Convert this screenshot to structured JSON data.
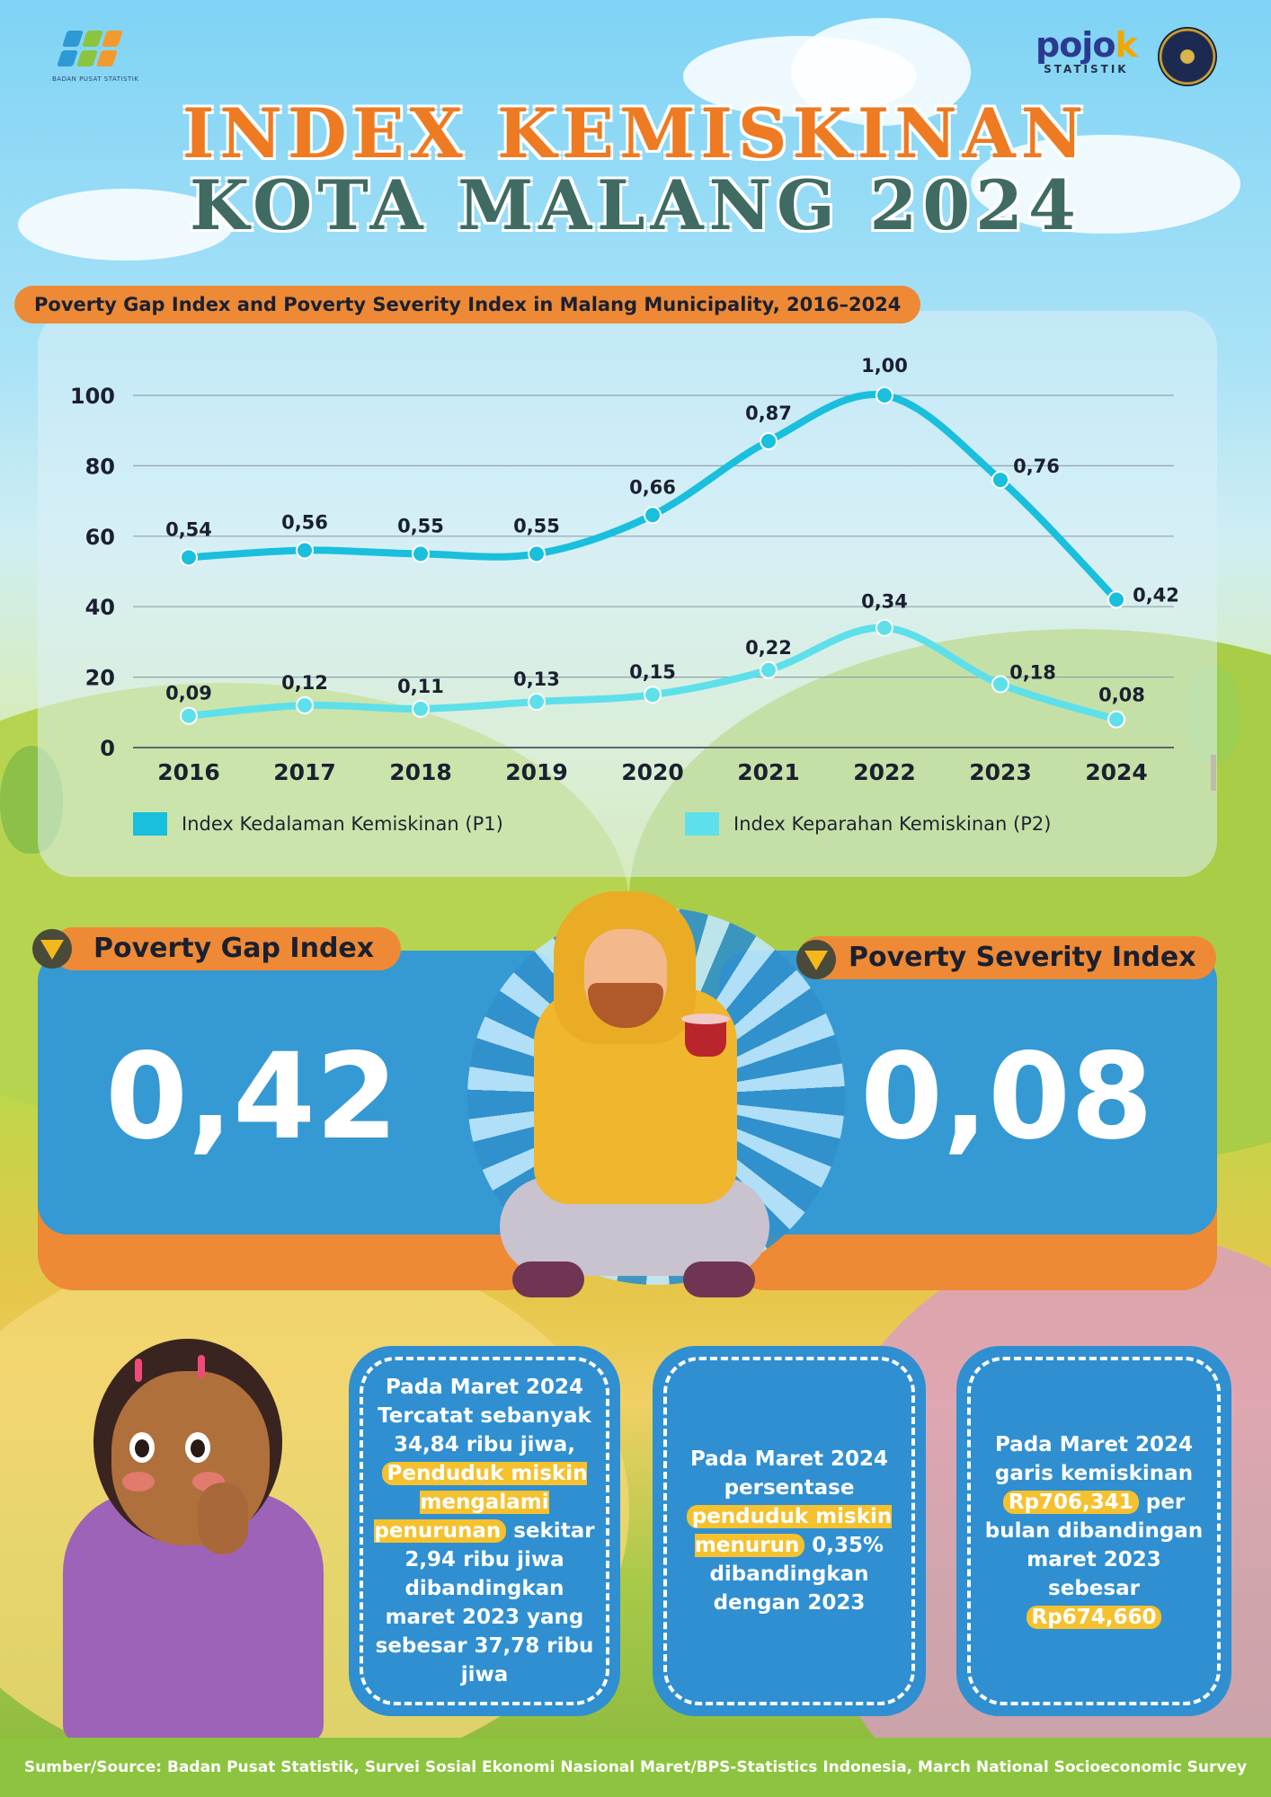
{
  "header": {
    "bps_caption": "BADAN PUSAT STATISTIK",
    "pojok_word_a": "pojo",
    "pojok_word_b": "k",
    "pojok_sub": "STATISTIK"
  },
  "title": {
    "line1": "INDEX KEMISKINAN",
    "line2": "KOTA MALANG 2024"
  },
  "colors": {
    "p1": "#19bfdc",
    "p2": "#5ee0ea",
    "orange": "#ee8a35",
    "card_blue": "#3599d3"
  },
  "chart_data": {
    "type": "line",
    "title": "Poverty Gap Index and Poverty Severity Index in Malang Municipality, 2016–2024",
    "categories": [
      "2016",
      "2017",
      "2018",
      "2019",
      "2020",
      "2021",
      "2022",
      "2023",
      "2024"
    ],
    "y_ticks": [
      "0",
      "20",
      "40",
      "60",
      "80",
      "100"
    ],
    "ylim": [
      0,
      100
    ],
    "grid": true,
    "legend_position": "bottom",
    "series": [
      {
        "name": "Index Kedalaman Kemiskinan (P1)",
        "values": [
          0.54,
          0.56,
          0.55,
          0.55,
          0.66,
          0.87,
          1.0,
          0.76,
          0.42
        ],
        "labels": [
          "0,54",
          "0,56",
          "0,55",
          "0,55",
          "0,66",
          "0,87",
          "1,00",
          "0,76",
          "0,42"
        ]
      },
      {
        "name": "Index Keparahan Kemiskinan (P2)",
        "values": [
          0.09,
          0.12,
          0.11,
          0.13,
          0.15,
          0.22,
          0.34,
          0.18,
          0.08
        ],
        "labels": [
          "0,09",
          "0,12",
          "0,11",
          "0,13",
          "0,15",
          "0,22",
          "0,34",
          "0,18",
          "0,08"
        ]
      }
    ]
  },
  "indices": {
    "gap": {
      "label": "Poverty Gap Index",
      "value": "0,42"
    },
    "severity": {
      "label": "Poverty Severity Index",
      "value": "0,08"
    }
  },
  "info_cards": [
    {
      "a": "Pada Maret 2024 Tercatat sebanyak 34,84 ribu jiwa, ",
      "hl1": "Penduduk miskin mengalami penurunan",
      "b": " sekitar 2,94 ribu jiwa dibandingkan maret 2023 yang sebesar 37,78 ribu jiwa",
      "hl2": "",
      "c": ""
    },
    {
      "a": "Pada Maret 2024 persentase ",
      "hl1": "penduduk miskin menurun",
      "b": " 0,35% dibandingkan dengan 2023",
      "hl2": "",
      "c": ""
    },
    {
      "a": "Pada Maret 2024 garis kemiskinan ",
      "hl1": "Rp706,341",
      "b": " per bulan dibandingan maret 2023 sebesar ",
      "hl2": "Rp674,660",
      "c": ""
    }
  ],
  "footer": {
    "source": "Sumber/Source: Badan Pusat Statistik, Survei Sosial Ekonomi Nasional Maret/BPS-Statistics Indonesia, March National Socioeconomic Survey"
  }
}
